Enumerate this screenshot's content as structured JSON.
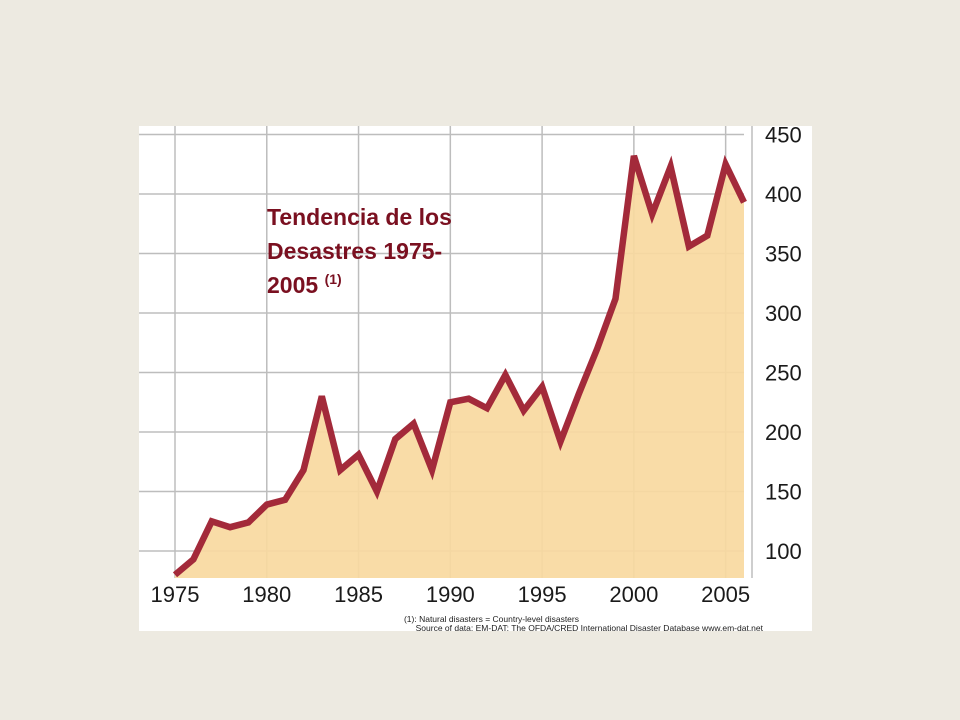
{
  "colors": {
    "slide_background": "#EDEAE1",
    "panel_background": "#FFFFFF",
    "area_fill": "#F8D9A0",
    "line": "#A32A3A",
    "grid": "#BDBDBD",
    "title": "#7A1020"
  },
  "chart_data": {
    "type": "area",
    "title_lines": [
      "Tendencia de los",
      "Desastres 1975-",
      "2005"
    ],
    "title_superscript": "(1)",
    "x": [
      1975,
      1976,
      1977,
      1978,
      1979,
      1980,
      1981,
      1982,
      1983,
      1984,
      1985,
      1986,
      1987,
      1988,
      1989,
      1990,
      1991,
      1992,
      1993,
      1994,
      1995,
      1996,
      1997,
      1998,
      1999,
      2000,
      2001,
      2002,
      2003,
      2004,
      2005,
      2006
    ],
    "values": [
      80,
      93,
      125,
      120,
      124,
      139,
      143,
      168,
      230,
      168,
      181,
      150,
      194,
      207,
      168,
      225,
      228,
      220,
      248,
      218,
      238,
      192,
      232,
      270,
      312,
      432,
      383,
      423,
      356,
      365,
      425,
      393
    ],
    "xticks": [
      "1975",
      "1980",
      "1985",
      "1990",
      "1995",
      "2000",
      "2005"
    ],
    "yticks": [
      "100",
      "150",
      "200",
      "250",
      "300",
      "350",
      "400",
      "450"
    ],
    "ylim": [
      80,
      450
    ],
    "xlim": [
      1975,
      2006
    ],
    "grid": true,
    "y_axis_side": "right",
    "footnote": "(1): Natural disasters = Country-level disasters",
    "source": "Source of data: EM-DAT: The OFDA/CRED International Disaster Database www.em-dat.net"
  }
}
